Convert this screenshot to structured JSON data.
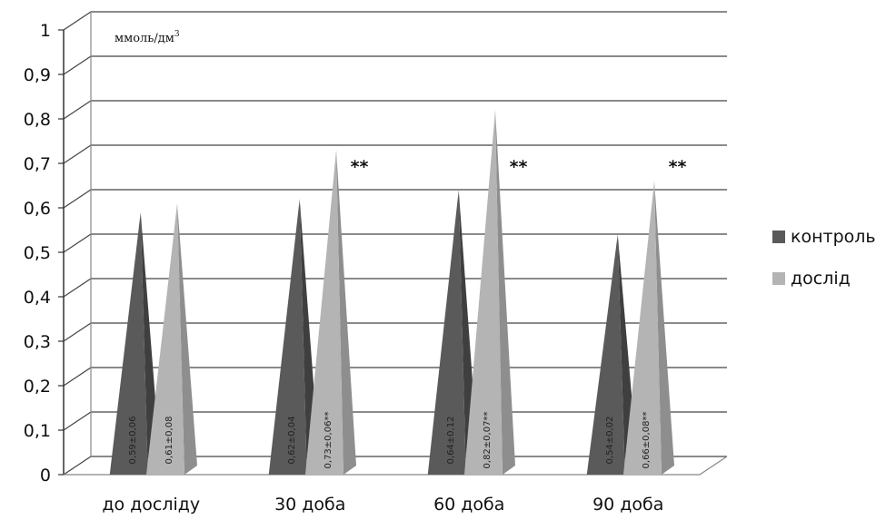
{
  "chart_data": {
    "type": "bar",
    "bar_shape": "pyramid-3d",
    "categories": [
      "до досліду",
      "30 доба",
      "60 доба",
      "90 доба"
    ],
    "ylim": [
      0,
      1
    ],
    "yticks": [
      "0",
      "0,1",
      "0,2",
      "0,3",
      "0,4",
      "0,5",
      "0,6",
      "0,7",
      "0,8",
      "0,9",
      "1"
    ],
    "unit_label": "ммоль/дм",
    "unit_sup": "3",
    "grid": true,
    "legend_position": "right",
    "series": [
      {
        "name": "контроль",
        "color": "#5a5a5a",
        "values": [
          0.59,
          0.62,
          0.64,
          0.54
        ],
        "labels": [
          "0,59±0,06",
          "0,62±0,04",
          "0,64±0,12",
          "0,54±0,02"
        ]
      },
      {
        "name": "дослід",
        "color": "#b4b4b4",
        "values": [
          0.61,
          0.73,
          0.82,
          0.66
        ],
        "labels": [
          "0,61±0,08",
          "0,73±0,06**",
          "0,82±0,07**",
          "0,66±0,08**"
        ]
      }
    ],
    "annotations": [
      "",
      "**",
      "**",
      "**"
    ]
  }
}
